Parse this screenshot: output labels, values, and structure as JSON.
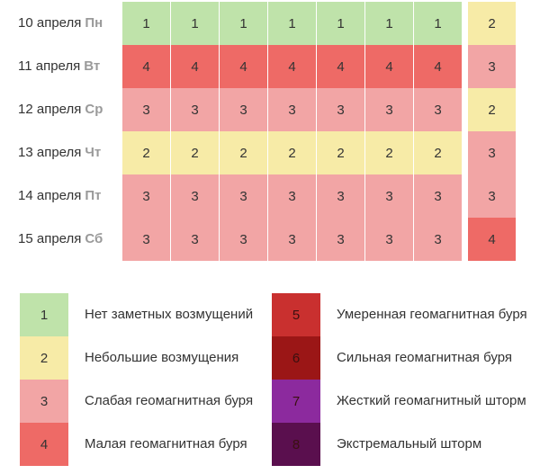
{
  "colors": {
    "1": "#bfe3aa",
    "2": "#f7eba7",
    "3": "#f2a5a5",
    "4": "#ee6a66",
    "5": "#c9302f",
    "6": "#9b1616",
    "7": "#8c2a9e",
    "8": "#5a0f4e"
  },
  "forecast": [
    {
      "date": "10 апреля",
      "day": "Пн",
      "values": [
        1,
        1,
        1,
        1,
        1,
        1,
        1,
        2
      ]
    },
    {
      "date": "11 апреля",
      "day": "Вт",
      "values": [
        4,
        4,
        4,
        4,
        4,
        4,
        4,
        3
      ]
    },
    {
      "date": "12 апреля",
      "day": "Ср",
      "values": [
        3,
        3,
        3,
        3,
        3,
        3,
        3,
        2
      ]
    },
    {
      "date": "13 апреля",
      "day": "Чт",
      "values": [
        2,
        2,
        2,
        2,
        2,
        2,
        2,
        3
      ]
    },
    {
      "date": "14 апреля",
      "day": "Пт",
      "values": [
        3,
        3,
        3,
        3,
        3,
        3,
        3,
        3
      ]
    },
    {
      "date": "15 апреля",
      "day": "Сб",
      "values": [
        3,
        3,
        3,
        3,
        3,
        3,
        3,
        4
      ]
    }
  ],
  "legend": [
    {
      "level": "1",
      "label": "Нет заметных возмущений"
    },
    {
      "level": "2",
      "label": "Небольшие возмущения"
    },
    {
      "level": "3",
      "label": "Слабая геомагнитная буря"
    },
    {
      "level": "4",
      "label": "Малая геомагнитная буря"
    },
    {
      "level": "5",
      "label": "Умеренная геомагнитная буря"
    },
    {
      "level": "6",
      "label": "Сильная геомагнитная буря"
    },
    {
      "level": "7",
      "label": "Жесткий геомагнитный шторм"
    },
    {
      "level": "8",
      "label": "Экстремальный шторм"
    }
  ]
}
